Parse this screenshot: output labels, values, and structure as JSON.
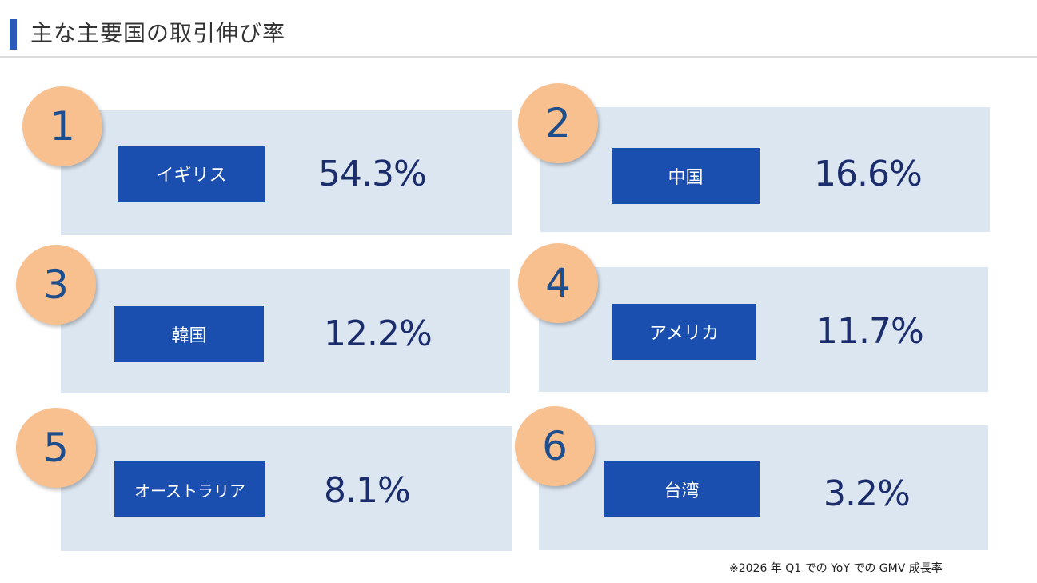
{
  "title": "主な主要国の取引伸び率",
  "items": [
    {
      "rank": "1",
      "country": "イギリス",
      "rate": "54.3%"
    },
    {
      "rank": "2",
      "country": "中国",
      "rate": "16.6%"
    },
    {
      "rank": "3",
      "country": "韓国",
      "rate": "12.2%"
    },
    {
      "rank": "4",
      "country": "アメリカ",
      "rate": "11.7%"
    },
    {
      "rank": "5",
      "country": "オーストラリア",
      "rate": "8.1%"
    },
    {
      "rank": "6",
      "country": "台湾",
      "rate": "3.2%"
    }
  ],
  "footnote": "※2026 年 Q1 での YoY での GMV 成長率",
  "colors": {
    "accent": "#2b5ab7",
    "panel": "#dce6f1",
    "label": "#1a4fb0",
    "badge": "#f8c08f"
  }
}
